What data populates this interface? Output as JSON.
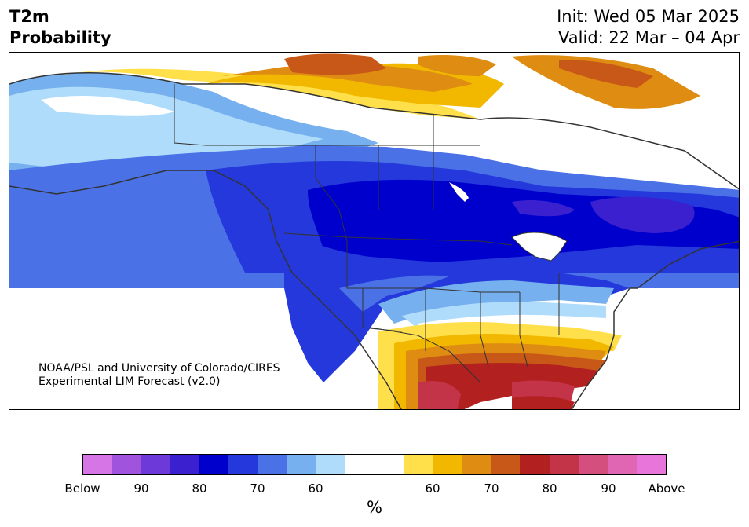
{
  "header": {
    "variable": "T2m",
    "quantity": "Probability",
    "init": "Init: Wed 05 Mar 2025",
    "valid": "Valid: 22 Mar – 04 Apr"
  },
  "map": {
    "credit_line1": "NOAA/PSL and University of Colorado/CIRES",
    "credit_line2": "Experimental LIM Forecast (v2.0)",
    "land_color": "#ffffff",
    "border_color": "#333333"
  },
  "colorbar": {
    "unit": "%",
    "colors": [
      "#d676e6",
      "#a054dd",
      "#6d3ad9",
      "#3a20cf",
      "#0000cd",
      "#2438db",
      "#4a72e6",
      "#76b0ee",
      "#b0dcfb",
      "#ffffff",
      "#ffffff",
      "#ffe04a",
      "#f2b800",
      "#df8d12",
      "#c85818",
      "#b32020",
      "#c43449",
      "#d44e7e",
      "#e066b4",
      "#e876da"
    ],
    "tick_labels": [
      "Below",
      "90",
      "80",
      "70",
      "60",
      "60",
      "70",
      "80",
      "90",
      "Above"
    ]
  }
}
